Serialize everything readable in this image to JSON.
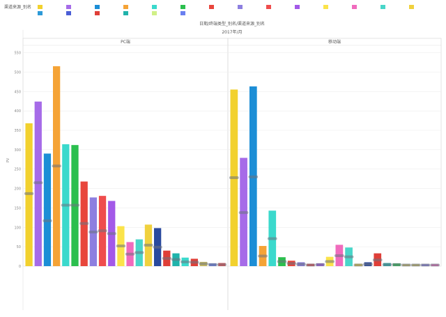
{
  "legend": {
    "title": "渠道来源_别名",
    "colors": [
      "#f2d12e",
      "#a66be8",
      "#1c8ed6",
      "#f5a336",
      "#3bd9cc",
      "#2bbf4e",
      "#e8463c",
      "#8d7fe0",
      "#ef4d4d",
      "#a359e8",
      "#fbe34a",
      "#f06bbd",
      "#49d6c9",
      "#f0d13e",
      "#2d9ad8",
      "#4a5ed6",
      "#df3f38",
      "#20b3ab",
      "#d0f087",
      "#6a80f0"
    ]
  },
  "chart_data": {
    "type": "bar",
    "title": "日期/终端类型_别名/渠道来源_别名",
    "subtitle": "2017年/月",
    "ylabel": "PV",
    "ylim": [
      0,
      560
    ],
    "yticks": [
      0,
      50,
      100,
      150,
      200,
      250,
      300,
      350,
      400,
      450,
      500,
      550
    ],
    "grid": true,
    "legend_position": "top",
    "panels": [
      {
        "name": "PC端",
        "bars": [
          {
            "value": 368,
            "marker": 187,
            "color": "#f2d12e"
          },
          {
            "value": 424,
            "marker": 215,
            "color": "#a66be8"
          },
          {
            "value": 290,
            "marker": 117,
            "color": "#1c8ed6"
          },
          {
            "value": 515,
            "marker": 258,
            "color": "#f5a336"
          },
          {
            "value": 314,
            "marker": 157,
            "color": "#3bd9cc"
          },
          {
            "value": 312,
            "marker": 157,
            "color": "#2bbf4e"
          },
          {
            "value": 218,
            "marker": 110,
            "color": "#e8463c"
          },
          {
            "value": 177,
            "marker": 88,
            "color": "#8d7fe0"
          },
          {
            "value": 181,
            "marker": 91,
            "color": "#ef4d4d"
          },
          {
            "value": 168,
            "marker": 84,
            "color": "#a359e8"
          },
          {
            "value": 103,
            "marker": 52,
            "color": "#fbe34a"
          },
          {
            "value": 62,
            "marker": 31,
            "color": "#f06bbd"
          },
          {
            "value": 69,
            "marker": 35,
            "color": "#49d6c9"
          },
          {
            "value": 107,
            "marker": 54,
            "color": "#f0d13e"
          },
          {
            "value": 98,
            "marker": 49,
            "color": "#2a4a9e"
          },
          {
            "value": 40,
            "marker": 20,
            "color": "#df3f38"
          },
          {
            "value": 33,
            "marker": 17,
            "color": "#20b3ab"
          },
          {
            "value": 22,
            "marker": 11,
            "color": "#3bd9cc"
          },
          {
            "value": 19,
            "marker": 10,
            "color": "#df3f38"
          },
          {
            "value": 11,
            "marker": 6,
            "color": "#d0c060"
          },
          {
            "value": 7,
            "marker": 4,
            "color": "#6a80f0"
          },
          {
            "value": 8,
            "marker": 4,
            "color": "#ef4d4d"
          }
        ]
      },
      {
        "name": "移动端",
        "bars": [
          {
            "value": 455,
            "marker": 228,
            "color": "#f2d12e"
          },
          {
            "value": 279,
            "marker": 138,
            "color": "#a66be8"
          },
          {
            "value": 463,
            "marker": 230,
            "color": "#1c8ed6"
          },
          {
            "value": 52,
            "marker": 26,
            "color": "#f5a336"
          },
          {
            "value": 143,
            "marker": 71,
            "color": "#3bd9cc"
          },
          {
            "value": 23,
            "marker": 12,
            "color": "#2bbf4e"
          },
          {
            "value": 14,
            "marker": 7,
            "color": "#e8463c"
          },
          {
            "value": 10,
            "marker": 5,
            "color": "#8d7fe0"
          },
          {
            "value": 6,
            "marker": 3,
            "color": "#ef4d4d"
          },
          {
            "value": 7,
            "marker": 4,
            "color": "#a359e8"
          },
          {
            "value": 24,
            "marker": 12,
            "color": "#fbe34a"
          },
          {
            "value": 55,
            "marker": 27,
            "color": "#f06bbd"
          },
          {
            "value": 48,
            "marker": 24,
            "color": "#49d6c9"
          },
          {
            "value": 6,
            "marker": 3,
            "color": "#f0d13e"
          },
          {
            "value": 10,
            "marker": 5,
            "color": "#2a4a9e"
          },
          {
            "value": 33,
            "marker": 16,
            "color": "#df3f38"
          },
          {
            "value": 8,
            "marker": 4,
            "color": "#20b3ab"
          },
          {
            "value": 7,
            "marker": 4,
            "color": "#2bbf4e"
          },
          {
            "value": 5,
            "marker": 3,
            "color": "#d0c060"
          },
          {
            "value": 5,
            "marker": 3,
            "color": "#d0c060"
          },
          {
            "value": 5,
            "marker": 3,
            "color": "#8d7fe0"
          },
          {
            "value": 5,
            "marker": 3,
            "color": "#f06bbd"
          }
        ]
      }
    ]
  }
}
